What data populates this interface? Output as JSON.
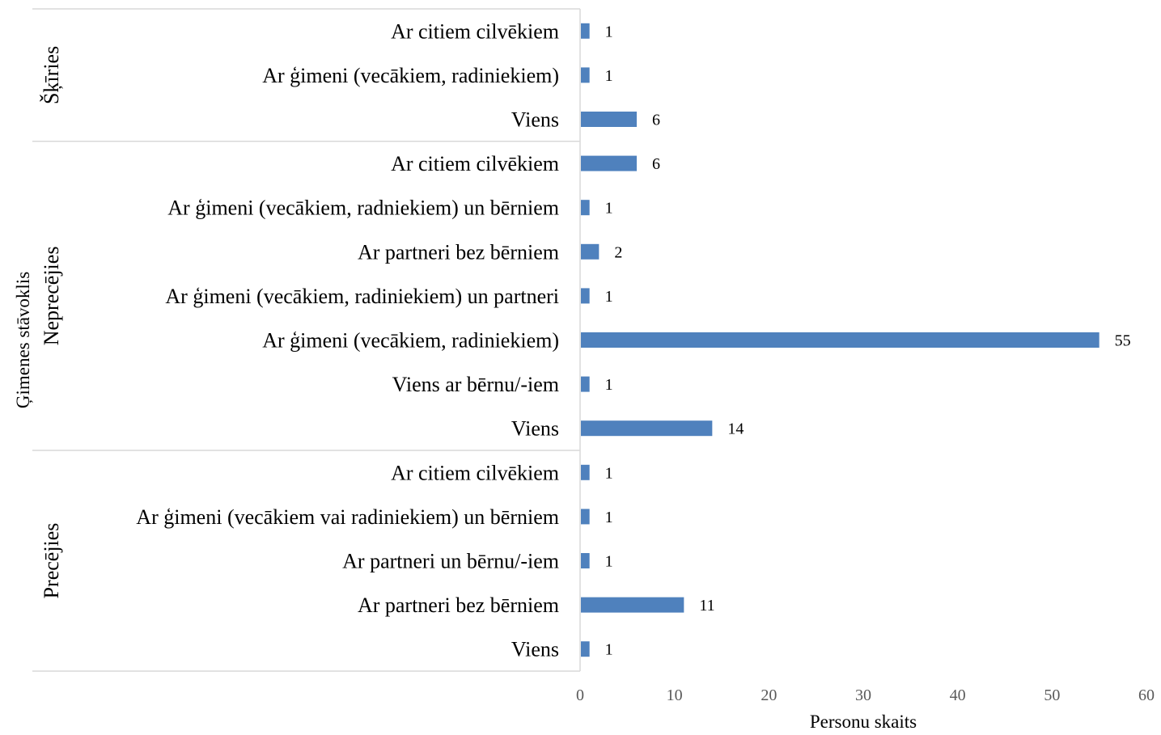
{
  "chart_data": {
    "type": "bar",
    "orientation": "horizontal",
    "xlabel": "Personu skaits",
    "ylabel": "Ģimenes stāvoklis",
    "xlim": [
      0,
      60
    ],
    "xticks": [
      0,
      10,
      20,
      30,
      40,
      50,
      60
    ],
    "grid": false,
    "legend": "none",
    "bar_color": "#4f81bd",
    "groups": [
      {
        "name": "Šķīries",
        "items": [
          {
            "label": "Ar citiem cilvēkiem",
            "value": 1
          },
          {
            "label": "Ar ģimeni (vecākiem, radiniekiem)",
            "value": 1
          },
          {
            "label": "Viens",
            "value": 6
          }
        ]
      },
      {
        "name": "Neprecējies",
        "items": [
          {
            "label": "Ar citiem cilvēkiem",
            "value": 6
          },
          {
            "label": "Ar ģimeni (vecākiem, radniekiem) un bērniem",
            "value": 1
          },
          {
            "label": "Ar partneri bez bērniem",
            "value": 2
          },
          {
            "label": "Ar ģimeni (vecākiem, radiniekiem) un partneri",
            "value": 1
          },
          {
            "label": "Ar ģimeni (vecākiem, radiniekiem)",
            "value": 55
          },
          {
            "label": "Viens ar bērnu/-iem",
            "value": 1
          },
          {
            "label": "Viens",
            "value": 14
          }
        ]
      },
      {
        "name": "Precējies",
        "items": [
          {
            "label": "Ar citiem cilvēkiem",
            "value": 1
          },
          {
            "label": "Ar ģimeni (vecākiem vai radiniekiem) un bērniem",
            "value": 1
          },
          {
            "label": "Ar partneri un bērnu/-iem",
            "value": 1
          },
          {
            "label": "Ar partneri bez bērniem",
            "value": 11
          },
          {
            "label": "Viens",
            "value": 1
          }
        ]
      }
    ]
  }
}
